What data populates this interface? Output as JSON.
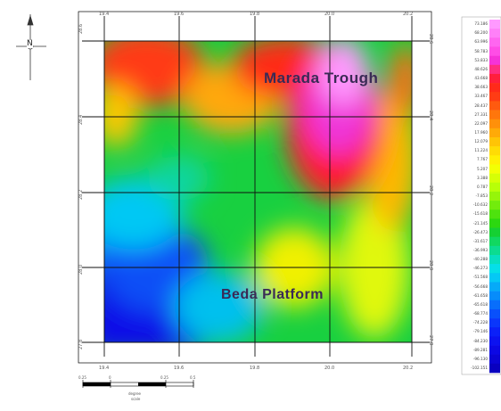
{
  "labels": {
    "trough": "Marada  Trough",
    "platform": "Beda  Platform"
  },
  "north_arrow": {
    "letter": "N"
  },
  "grid_ticks": {
    "top": [
      "19.4",
      "19.6",
      "19.8",
      "20.0",
      "20.2"
    ],
    "bottom": [
      "19.4",
      "19.6",
      "19.8",
      "20.0",
      "20.2"
    ],
    "left": [
      "28.6",
      "28.4",
      "28.2",
      "28.0",
      "27.8"
    ],
    "right": [
      "28.6",
      "28.4",
      "28.2",
      "28.0",
      "27.8"
    ]
  },
  "legend": {
    "values": [
      "73.186",
      "68.200",
      "63.996",
      "58.783",
      "53.833",
      "48.626",
      "43.668",
      "38.663",
      "33.467",
      "28.437",
      "27.331",
      "22.097",
      "17.960",
      "12.079",
      "11.224",
      "7.767",
      "5.207",
      "3.388",
      "0.787",
      "-7.853",
      "-10.632",
      "-15.618",
      "-21.145",
      "-26.473",
      "-31.617",
      "-36.993",
      "-40.288",
      "-46.273",
      "-51.568",
      "-56.668",
      "-61.658",
      "-65.618",
      "-68.774",
      "-74.228",
      "-79.146",
      "-84.230",
      "-89.281",
      "-96.130",
      "-102.151"
    ],
    "colors": [
      "#ff99ff",
      "#ff80f8",
      "#ff66f0",
      "#ff4de6",
      "#f533d8",
      "#ff2e80",
      "#ff1f3c",
      "#ff2a1a",
      "#ff3c14",
      "#ff5a0f",
      "#ff760c",
      "#ff900a",
      "#ffaa08",
      "#ffc406",
      "#ffdc05",
      "#fff004",
      "#f3ff04",
      "#d6ff06",
      "#b8ff08",
      "#96f50a",
      "#72ec0c",
      "#4ee20e",
      "#2cd810",
      "#15d032",
      "#11d860",
      "#0cdc90",
      "#08dfc0",
      "#05dfe8",
      "#05c8f5",
      "#06aaf8",
      "#078cfa",
      "#086efb",
      "#0950fb",
      "#0a36fb",
      "#0b20f8",
      "#0c12f0",
      "#0c08e4",
      "#0b04d4",
      "#0900c0"
    ]
  },
  "scale_bar": {
    "ticks": [
      "0.25",
      "0",
      "0.25",
      "0.5"
    ],
    "unit": "degree",
    "note": "scale"
  },
  "colors": {
    "frame": "#000000",
    "grid": "#111111",
    "label": "#3a2a55"
  }
}
